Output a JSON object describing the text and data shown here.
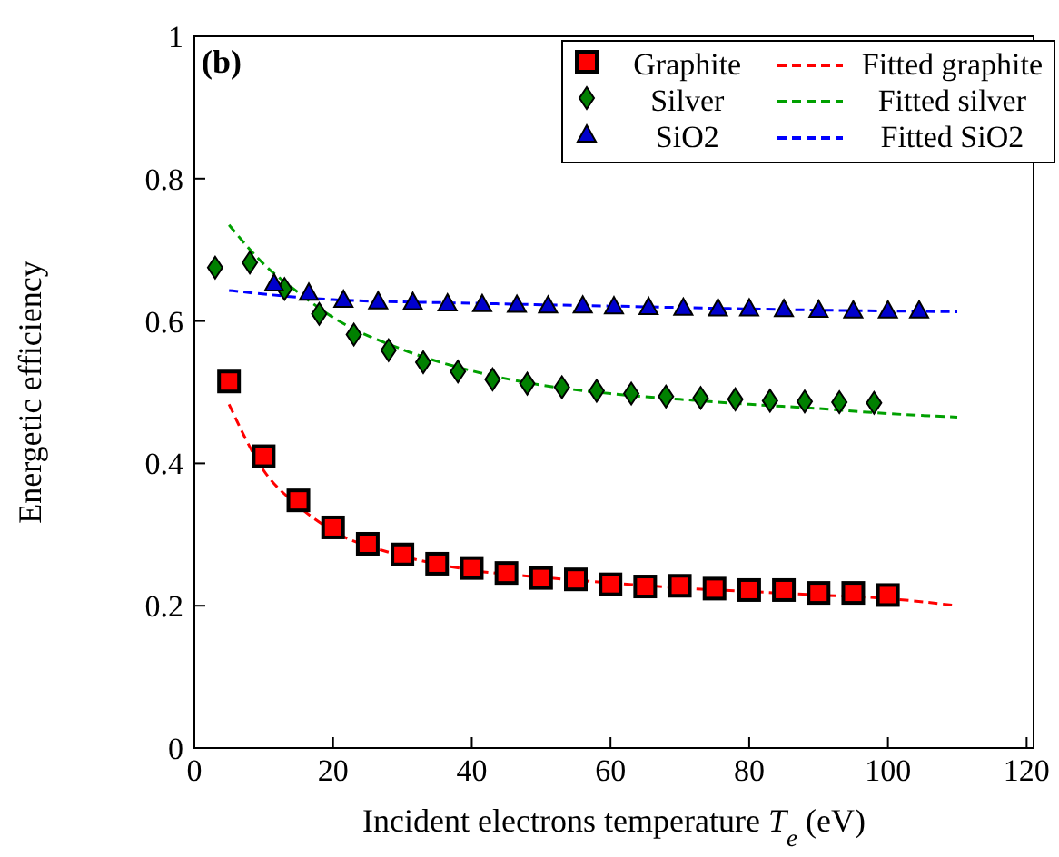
{
  "chart_data": {
    "type": "scatter",
    "xlabel": "Incident electrons temperature $_{}$T$_{e}$ (eV)",
    "ylabel": "Energetic efficiency",
    "annotations": [
      "(b)"
    ],
    "xlim": [
      0,
      121
    ],
    "xticks": [
      0,
      20,
      40,
      60,
      80,
      100,
      120
    ],
    "ylim": [
      0,
      1
    ],
    "yticks": [
      0,
      0.2,
      0.4,
      0.6,
      0.8,
      1
    ],
    "legend": "top right",
    "grid": false,
    "series": [
      {
        "name": "Graphite",
        "marker": "square",
        "color": "#ff0000",
        "x": [
          5,
          10,
          15,
          20,
          25,
          30,
          35,
          40,
          45,
          50,
          55,
          60,
          65,
          70,
          75,
          80,
          85,
          90,
          95,
          100
        ],
        "values": [
          0.515,
          0.41,
          0.348,
          0.31,
          0.287,
          0.272,
          0.259,
          0.253,
          0.246,
          0.239,
          0.237,
          0.23,
          0.227,
          0.228,
          0.224,
          0.222,
          0.222,
          0.218,
          0.218,
          0.215
        ]
      },
      {
        "name": "Silver",
        "marker": "diamond",
        "color": "#008000",
        "x": [
          3,
          8,
          13,
          18,
          23,
          28,
          33,
          38,
          43,
          48,
          53,
          58,
          63,
          68,
          73,
          78,
          83,
          88,
          93,
          98
        ],
        "values": [
          0.675,
          0.682,
          0.645,
          0.61,
          0.581,
          0.559,
          0.542,
          0.529,
          0.518,
          0.512,
          0.507,
          0.502,
          0.498,
          0.494,
          0.492,
          0.49,
          0.488,
          0.487,
          0.486,
          0.485
        ]
      },
      {
        "name": "SiO2",
        "marker": "triangle",
        "color": "#0000cc",
        "x": [
          11.5,
          16.5,
          21.5,
          26.5,
          31.5,
          36.5,
          41.5,
          46.5,
          51,
          56,
          60.5,
          65.5,
          70.5,
          75.5,
          80,
          85,
          90,
          95,
          100,
          104.5
        ],
        "values": [
          0.653,
          0.64,
          0.63,
          0.628,
          0.627,
          0.625,
          0.624,
          0.623,
          0.622,
          0.622,
          0.621,
          0.62,
          0.619,
          0.618,
          0.618,
          0.617,
          0.616,
          0.615,
          0.615,
          0.615
        ]
      },
      {
        "name": "Fitted graphite",
        "type": "line",
        "line_style": "dashed",
        "color": "#ff0000",
        "x": [
          5,
          10,
          15,
          20,
          30,
          40,
          50,
          60,
          70,
          80,
          90,
          100,
          110
        ],
        "values": [
          0.483,
          0.39,
          0.34,
          0.305,
          0.27,
          0.25,
          0.24,
          0.232,
          0.225,
          0.22,
          0.215,
          0.21,
          0.2
        ]
      },
      {
        "name": "Fitted silver",
        "type": "line",
        "line_style": "dashed",
        "color": "#00a000",
        "x": [
          5,
          10,
          15,
          20,
          30,
          40,
          50,
          60,
          70,
          80,
          90,
          100,
          110
        ],
        "values": [
          0.735,
          0.68,
          0.64,
          0.605,
          0.56,
          0.53,
          0.51,
          0.498,
          0.49,
          0.483,
          0.477,
          0.47,
          0.465
        ]
      },
      {
        "name": "Fitted SiO2",
        "type": "line",
        "line_style": "dashed",
        "color": "#0000ff",
        "x": [
          5,
          20,
          40,
          60,
          80,
          100,
          110
        ],
        "values": [
          0.643,
          0.63,
          0.625,
          0.621,
          0.617,
          0.614,
          0.613
        ]
      }
    ]
  }
}
